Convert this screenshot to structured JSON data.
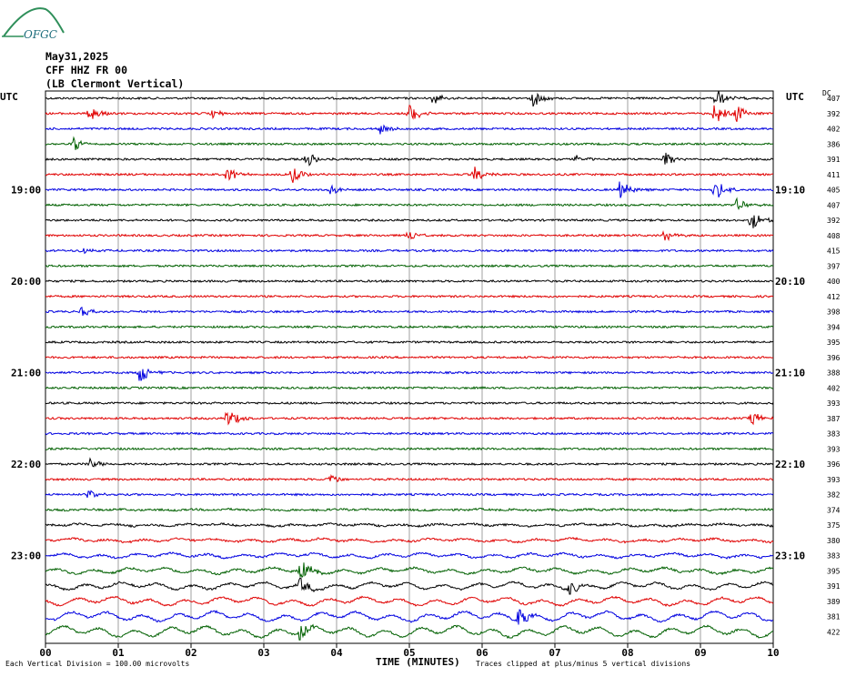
{
  "logo": {
    "text": "OFGC",
    "color": "#1a6b7a"
  },
  "header": {
    "date": "May31,2025",
    "station": "CFF HHZ FR 00",
    "location": "(LB  Clermont Vertical)"
  },
  "utc_left": "UTC",
  "utc_right": "UTC",
  "dc_label": "DC",
  "footer": {
    "scale": "Each Vertical Division =  100.00 microvolts",
    "xlabel": "TIME (MINUTES)",
    "clip": "Traces clipped at plus/minus 5 vertical divisions"
  },
  "colors": {
    "trace_cycle": [
      "#000000",
      "#e00000",
      "#0000e0",
      "#006000"
    ],
    "grid": "#888888"
  },
  "chart_data": {
    "type": "line",
    "xlabel": "TIME (MINUTES)",
    "x_ticks": [
      "00",
      "01",
      "02",
      "03",
      "04",
      "05",
      "06",
      "07",
      "08",
      "09",
      "10"
    ],
    "xlim": [
      0,
      10
    ],
    "rows": 36,
    "left_time_labels": [
      {
        "row": 6,
        "text": "19:00"
      },
      {
        "row": 12,
        "text": "20:00"
      },
      {
        "row": 18,
        "text": "21:00"
      },
      {
        "row": 24,
        "text": "22:00"
      },
      {
        "row": 30,
        "text": "23:00"
      }
    ],
    "right_time_labels": [
      {
        "row": 6,
        "text": "19:10"
      },
      {
        "row": 12,
        "text": "20:10"
      },
      {
        "row": 18,
        "text": "21:10"
      },
      {
        "row": 24,
        "text": "22:10"
      },
      {
        "row": 30,
        "text": "23:10"
      }
    ],
    "dc_offsets": [
      407,
      392,
      402,
      386,
      391,
      411,
      405,
      407,
      392,
      408,
      415,
      397,
      400,
      412,
      398,
      394,
      395,
      396,
      388,
      402,
      393,
      387,
      383,
      393,
      396,
      393,
      382,
      374,
      375,
      380,
      383,
      395,
      391,
      389,
      381,
      422
    ],
    "events": [
      {
        "row": 0,
        "minute": 5.3,
        "amp": 0.6
      },
      {
        "row": 0,
        "minute": 6.7,
        "amp": 0.7
      },
      {
        "row": 0,
        "minute": 9.2,
        "amp": 0.9
      },
      {
        "row": 1,
        "minute": 0.6,
        "amp": 0.9
      },
      {
        "row": 1,
        "minute": 2.3,
        "amp": 0.4
      },
      {
        "row": 1,
        "minute": 5.0,
        "amp": 0.8
      },
      {
        "row": 1,
        "minute": 9.2,
        "amp": 1.0
      },
      {
        "row": 1,
        "minute": 9.5,
        "amp": 0.8
      },
      {
        "row": 2,
        "minute": 4.6,
        "amp": 0.4
      },
      {
        "row": 3,
        "minute": 0.4,
        "amp": 0.6
      },
      {
        "row": 4,
        "minute": 3.6,
        "amp": 0.6
      },
      {
        "row": 4,
        "minute": 7.3,
        "amp": 0.4
      },
      {
        "row": 4,
        "minute": 8.5,
        "amp": 0.7
      },
      {
        "row": 5,
        "minute": 2.5,
        "amp": 0.6
      },
      {
        "row": 5,
        "minute": 3.4,
        "amp": 0.8
      },
      {
        "row": 5,
        "minute": 5.9,
        "amp": 0.6
      },
      {
        "row": 6,
        "minute": 3.9,
        "amp": 0.4
      },
      {
        "row": 6,
        "minute": 7.9,
        "amp": 0.9
      },
      {
        "row": 6,
        "minute": 9.2,
        "amp": 0.9
      },
      {
        "row": 7,
        "minute": 9.5,
        "amp": 0.5
      },
      {
        "row": 8,
        "minute": 9.7,
        "amp": 0.9
      },
      {
        "row": 9,
        "minute": 5.0,
        "amp": 0.5
      },
      {
        "row": 9,
        "minute": 8.5,
        "amp": 0.5
      },
      {
        "row": 10,
        "minute": 0.5,
        "amp": 0.3
      },
      {
        "row": 14,
        "minute": 0.5,
        "amp": 0.4
      },
      {
        "row": 18,
        "minute": 1.3,
        "amp": 1.0
      },
      {
        "row": 21,
        "minute": 2.5,
        "amp": 0.9
      },
      {
        "row": 21,
        "minute": 9.7,
        "amp": 0.7
      },
      {
        "row": 24,
        "minute": 0.6,
        "amp": 0.5
      },
      {
        "row": 25,
        "minute": 3.9,
        "amp": 0.4
      },
      {
        "row": 26,
        "minute": 0.6,
        "amp": 0.4
      },
      {
        "row": 31,
        "minute": 3.5,
        "amp": 0.9
      },
      {
        "row": 32,
        "minute": 3.5,
        "amp": 0.7
      },
      {
        "row": 32,
        "minute": 7.2,
        "amp": 0.7
      },
      {
        "row": 34,
        "minute": 6.5,
        "amp": 1.0
      },
      {
        "row": 35,
        "minute": 3.5,
        "amp": 0.8
      }
    ]
  }
}
